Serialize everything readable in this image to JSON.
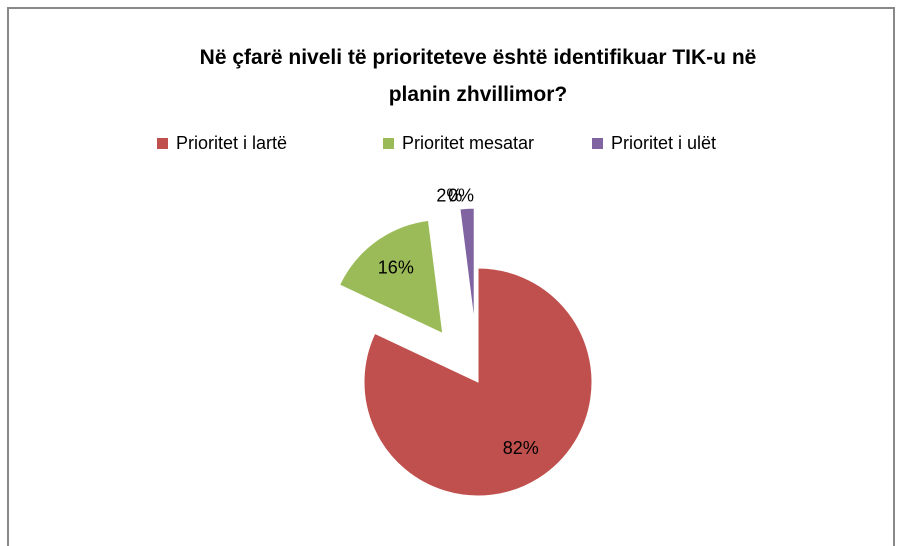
{
  "chart_data": {
    "type": "pie",
    "title": "Në çfarë niveli të prioriteteve është identifikuar TIK-u në planin zhvillimor?",
    "categories": [
      "Prioritet i lartë",
      "Prioritet mesatar",
      "Prioritet i ulët",
      null
    ],
    "values": [
      82,
      16,
      2,
      0
    ],
    "value_labels": [
      "82%",
      "16%",
      "2%",
      "0%"
    ],
    "colors": [
      "#c0504d",
      "#9bbb59",
      "#8064a2",
      "#4bacc6"
    ],
    "legend": "top"
  }
}
